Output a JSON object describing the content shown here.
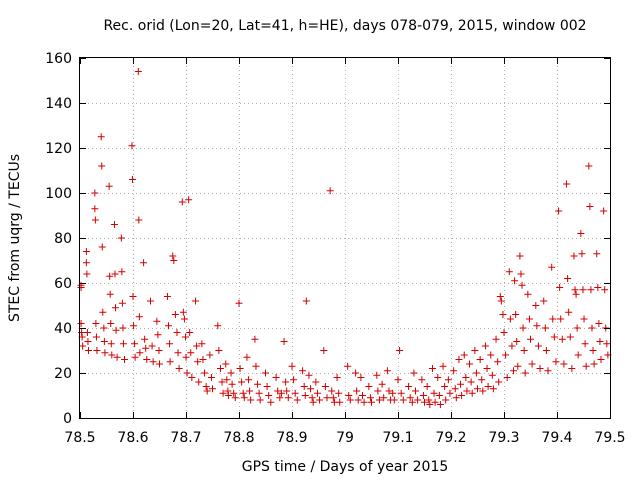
{
  "chart_data": {
    "type": "scatter",
    "title": "Rec. orid (Lon=20, Lat=41, h=HE), days 078-079, 2015, window 002",
    "xlabel": "GPS time / Days of year 2015",
    "ylabel": "STEC from uqrg / TECUs",
    "xlim": [
      78.5,
      79.5
    ],
    "ylim": [
      0,
      160
    ],
    "xticks": [
      "78.5",
      "78.6",
      "78.7",
      "78.8",
      "78.9",
      "79",
      "79.1",
      "79.2",
      "79.3",
      "79.4",
      "79.5"
    ],
    "yticks": [
      "0",
      "20",
      "40",
      "60",
      "80",
      "100",
      "120",
      "140",
      "160"
    ],
    "marker": "plus",
    "color": "#d40000",
    "series": [
      {
        "name": "STEC",
        "points": [
          [
            78.502,
            59
          ],
          [
            78.502,
            58
          ],
          [
            78.502,
            42
          ],
          [
            78.503,
            38
          ],
          [
            78.504,
            36
          ],
          [
            78.505,
            32
          ],
          [
            78.512,
            74
          ],
          [
            78.512,
            69
          ],
          [
            78.513,
            64
          ],
          [
            78.514,
            38
          ],
          [
            78.515,
            34
          ],
          [
            78.516,
            30
          ],
          [
            78.528,
            100
          ],
          [
            78.528,
            93
          ],
          [
            78.529,
            88
          ],
          [
            78.53,
            42
          ],
          [
            78.531,
            36
          ],
          [
            78.532,
            30
          ],
          [
            78.54,
            125
          ],
          [
            78.541,
            112
          ],
          [
            78.542,
            76
          ],
          [
            78.543,
            47
          ],
          [
            78.545,
            40
          ],
          [
            78.546,
            34
          ],
          [
            78.547,
            29
          ],
          [
            78.555,
            103
          ],
          [
            78.556,
            63
          ],
          [
            78.557,
            55
          ],
          [
            78.558,
            42
          ],
          [
            78.559,
            33
          ],
          [
            78.56,
            28
          ],
          [
            78.565,
            86
          ],
          [
            78.566,
            64
          ],
          [
            78.567,
            49
          ],
          [
            78.568,
            39
          ],
          [
            78.57,
            27
          ],
          [
            78.578,
            80
          ],
          [
            78.579,
            65
          ],
          [
            78.58,
            51
          ],
          [
            78.581,
            40
          ],
          [
            78.582,
            33
          ],
          [
            78.584,
            26
          ],
          [
            78.598,
            121
          ],
          [
            78.599,
            106
          ],
          [
            78.6,
            54
          ],
          [
            78.601,
            41
          ],
          [
            78.603,
            33
          ],
          [
            78.604,
            27
          ],
          [
            78.61,
            154
          ],
          [
            78.611,
            88
          ],
          [
            78.612,
            45
          ],
          [
            78.613,
            29
          ],
          [
            78.62,
            69
          ],
          [
            78.622,
            35
          ],
          [
            78.624,
            31
          ],
          [
            78.626,
            26
          ],
          [
            78.633,
            52
          ],
          [
            78.636,
            32
          ],
          [
            78.638,
            25
          ],
          [
            78.645,
            43
          ],
          [
            78.647,
            37
          ],
          [
            78.649,
            30
          ],
          [
            78.65,
            24
          ],
          [
            78.665,
            54
          ],
          [
            78.667,
            41
          ],
          [
            78.669,
            33
          ],
          [
            78.67,
            25
          ],
          [
            78.675,
            72
          ],
          [
            78.677,
            70
          ],
          [
            78.68,
            46
          ],
          [
            78.683,
            38
          ],
          [
            78.685,
            29
          ],
          [
            78.687,
            22
          ],
          [
            78.693,
            96
          ],
          [
            78.695,
            47
          ],
          [
            78.697,
            44
          ],
          [
            78.699,
            36
          ],
          [
            78.7,
            27
          ],
          [
            78.702,
            20
          ],
          [
            78.705,
            97
          ],
          [
            78.707,
            38
          ],
          [
            78.709,
            29
          ],
          [
            78.711,
            18
          ],
          [
            78.718,
            52
          ],
          [
            78.72,
            32
          ],
          [
            78.722,
            25
          ],
          [
            78.724,
            16
          ],
          [
            78.73,
            33
          ],
          [
            78.732,
            26
          ],
          [
            78.735,
            20
          ],
          [
            78.738,
            14
          ],
          [
            78.74,
            12
          ],
          [
            78.745,
            28
          ],
          [
            78.748,
            18
          ],
          [
            78.75,
            13
          ],
          [
            78.76,
            41
          ],
          [
            78.762,
            30
          ],
          [
            78.765,
            22
          ],
          [
            78.768,
            16
          ],
          [
            78.77,
            11
          ],
          [
            78.775,
            24
          ],
          [
            78.777,
            17
          ],
          [
            78.779,
            12
          ],
          [
            78.78,
            10
          ],
          [
            78.785,
            20
          ],
          [
            78.787,
            15
          ],
          [
            78.79,
            11
          ],
          [
            78.793,
            9
          ],
          [
            78.8,
            51
          ],
          [
            78.802,
            22
          ],
          [
            78.805,
            16
          ],
          [
            78.808,
            11
          ],
          [
            78.81,
            9
          ],
          [
            78.815,
            27
          ],
          [
            78.818,
            17
          ],
          [
            78.82,
            12
          ],
          [
            78.822,
            8
          ],
          [
            78.83,
            35
          ],
          [
            78.832,
            23
          ],
          [
            78.835,
            15
          ],
          [
            78.838,
            11
          ],
          [
            78.84,
            8
          ],
          [
            78.85,
            20
          ],
          [
            78.853,
            14
          ],
          [
            78.856,
            10
          ],
          [
            78.86,
            7
          ],
          [
            78.87,
            18
          ],
          [
            78.873,
            12
          ],
          [
            78.877,
            9
          ],
          [
            78.88,
            11
          ],
          [
            78.885,
            34
          ],
          [
            78.888,
            16
          ],
          [
            78.89,
            12
          ],
          [
            78.893,
            9
          ],
          [
            78.9,
            23
          ],
          [
            78.903,
            17
          ],
          [
            78.906,
            11
          ],
          [
            78.91,
            8
          ],
          [
            78.92,
            21
          ],
          [
            78.923,
            14
          ],
          [
            78.925,
            10
          ],
          [
            78.927,
            52
          ],
          [
            78.932,
            19
          ],
          [
            78.935,
            13
          ],
          [
            78.938,
            9
          ],
          [
            78.94,
            7
          ],
          [
            78.945,
            16
          ],
          [
            78.948,
            11
          ],
          [
            78.952,
            8
          ],
          [
            78.96,
            30
          ],
          [
            78.963,
            14
          ],
          [
            78.966,
            9
          ],
          [
            78.972,
            101
          ],
          [
            78.975,
            12
          ],
          [
            78.978,
            9
          ],
          [
            78.98,
            7
          ],
          [
            78.985,
            18
          ],
          [
            78.988,
            11
          ],
          [
            78.99,
            7
          ],
          [
            79.005,
            23
          ],
          [
            79.007,
            10
          ],
          [
            79.01,
            8
          ],
          [
            79.02,
            20
          ],
          [
            79.022,
            12
          ],
          [
            79.025,
            8
          ],
          [
            79.03,
            18
          ],
          [
            79.033,
            10
          ],
          [
            79.036,
            7
          ],
          [
            79.045,
            14
          ],
          [
            79.048,
            9
          ],
          [
            79.05,
            7
          ],
          [
            79.06,
            19
          ],
          [
            79.062,
            12
          ],
          [
            79.065,
            8
          ],
          [
            79.07,
            15
          ],
          [
            79.073,
            9
          ],
          [
            79.08,
            21
          ],
          [
            79.083,
            12
          ],
          [
            79.086,
            8
          ],
          [
            79.09,
            11
          ],
          [
            79.093,
            8
          ],
          [
            79.1,
            17
          ],
          [
            79.103,
            30
          ],
          [
            79.106,
            11
          ],
          [
            79.11,
            8
          ],
          [
            79.12,
            14
          ],
          [
            79.123,
            9
          ],
          [
            79.127,
            7
          ],
          [
            79.13,
            20
          ],
          [
            79.133,
            12
          ],
          [
            79.137,
            8
          ],
          [
            79.145,
            17
          ],
          [
            79.148,
            10
          ],
          [
            79.15,
            7
          ],
          [
            79.155,
            14
          ],
          [
            79.158,
            8
          ],
          [
            79.16,
            6
          ],
          [
            79.165,
            22
          ],
          [
            79.168,
            11
          ],
          [
            79.17,
            7
          ],
          [
            79.175,
            18
          ],
          [
            79.178,
            10
          ],
          [
            79.18,
            6
          ],
          [
            79.185,
            23
          ],
          [
            79.188,
            14
          ],
          [
            79.19,
            8
          ],
          [
            79.195,
            17
          ],
          [
            79.198,
            11
          ],
          [
            79.205,
            21
          ],
          [
            79.208,
            13
          ],
          [
            79.21,
            9
          ],
          [
            79.215,
            26
          ],
          [
            79.218,
            15
          ],
          [
            79.22,
            10
          ],
          [
            79.225,
            28
          ],
          [
            79.228,
            18
          ],
          [
            79.23,
            12
          ],
          [
            79.235,
            24
          ],
          [
            79.238,
            16
          ],
          [
            79.24,
            11
          ],
          [
            79.245,
            30
          ],
          [
            79.248,
            20
          ],
          [
            79.25,
            13
          ],
          [
            79.255,
            26
          ],
          [
            79.258,
            17
          ],
          [
            79.26,
            12
          ],
          [
            79.265,
            32
          ],
          [
            79.268,
            22
          ],
          [
            79.27,
            14
          ],
          [
            79.275,
            28
          ],
          [
            79.278,
            19
          ],
          [
            79.28,
            13
          ],
          [
            79.285,
            35
          ],
          [
            79.288,
            25
          ],
          [
            79.29,
            16
          ],
          [
            79.293,
            54
          ],
          [
            79.295,
            52
          ],
          [
            79.298,
            46
          ],
          [
            79.3,
            38
          ],
          [
            79.303,
            28
          ],
          [
            79.306,
            18
          ],
          [
            79.31,
            65
          ],
          [
            79.312,
            44
          ],
          [
            79.315,
            32
          ],
          [
            79.318,
            21
          ],
          [
            79.32,
            61
          ],
          [
            79.322,
            46
          ],
          [
            79.324,
            34
          ],
          [
            79.326,
            23
          ],
          [
            79.33,
            72
          ],
          [
            79.332,
            64
          ],
          [
            79.334,
            59
          ],
          [
            79.336,
            40
          ],
          [
            79.338,
            30
          ],
          [
            79.34,
            20
          ],
          [
            79.345,
            55
          ],
          [
            79.348,
            44
          ],
          [
            79.35,
            35
          ],
          [
            79.353,
            24
          ],
          [
            79.36,
            50
          ],
          [
            79.362,
            41
          ],
          [
            79.365,
            32
          ],
          [
            79.368,
            22
          ],
          [
            79.375,
            52
          ],
          [
            79.378,
            40
          ],
          [
            79.38,
            30
          ],
          [
            79.383,
            21
          ],
          [
            79.39,
            67
          ],
          [
            79.392,
            44
          ],
          [
            79.395,
            36
          ],
          [
            79.398,
            25
          ],
          [
            79.403,
            92
          ],
          [
            79.405,
            58
          ],
          [
            79.407,
            44
          ],
          [
            79.41,
            35
          ],
          [
            79.413,
            24
          ],
          [
            79.418,
            104
          ],
          [
            79.42,
            62
          ],
          [
            79.422,
            47
          ],
          [
            79.425,
            36
          ],
          [
            79.428,
            22
          ],
          [
            79.432,
            72
          ],
          [
            79.434,
            57
          ],
          [
            79.436,
            55
          ],
          [
            79.438,
            40
          ],
          [
            79.44,
            28
          ],
          [
            79.445,
            82
          ],
          [
            79.447,
            73
          ],
          [
            79.449,
            57
          ],
          [
            79.451,
            44
          ],
          [
            79.453,
            33
          ],
          [
            79.455,
            23
          ],
          [
            79.46,
            112
          ],
          [
            79.462,
            94
          ],
          [
            79.464,
            57
          ],
          [
            79.466,
            40
          ],
          [
            79.468,
            30
          ],
          [
            79.47,
            24
          ],
          [
            79.475,
            73
          ],
          [
            79.477,
            58
          ],
          [
            79.479,
            42
          ],
          [
            79.481,
            34
          ],
          [
            79.483,
            26
          ],
          [
            79.488,
            92
          ],
          [
            79.49,
            57
          ],
          [
            79.492,
            40
          ],
          [
            79.494,
            33
          ],
          [
            79.496,
            28
          ]
        ]
      }
    ]
  }
}
